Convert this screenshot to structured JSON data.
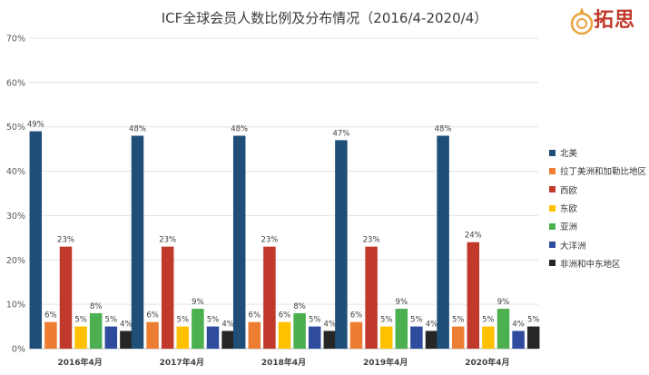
{
  "title": "ICF全球会员人数比例及分布情况（2016/4-2020/4）",
  "logo": {
    "text": "拓思"
  },
  "chart_data": {
    "type": "bar",
    "categories": [
      "2016年4月",
      "2017年4月",
      "2018年4月",
      "2019年4月",
      "2020年4月"
    ],
    "series": [
      {
        "name": "北美",
        "color": "#1F4E79",
        "values": [
          49,
          48,
          48,
          47,
          48
        ]
      },
      {
        "name": "拉丁美洲和加勒比地区",
        "color": "#ED7D31",
        "values": [
          6,
          6,
          6,
          6,
          5
        ]
      },
      {
        "name": "西欧",
        "color": "#C0392B",
        "values": [
          23,
          23,
          23,
          23,
          24
        ]
      },
      {
        "name": "东欧",
        "color": "#FFC000",
        "values": [
          5,
          5,
          6,
          5,
          5
        ]
      },
      {
        "name": "亚洲",
        "color": "#4CAF50",
        "values": [
          8,
          9,
          8,
          9,
          9
        ]
      },
      {
        "name": "大洋洲",
        "color": "#2E4B9E",
        "values": [
          5,
          5,
          5,
          5,
          4
        ]
      },
      {
        "name": "非洲和中东地区",
        "color": "#262626",
        "values": [
          4,
          4,
          4,
          4,
          5
        ]
      }
    ],
    "ylim": [
      0,
      70
    ],
    "yticks": [
      "0%",
      "10%",
      "20%",
      "30%",
      "40%",
      "50%",
      "60%",
      "70%"
    ],
    "value_suffix": "%",
    "grid": true,
    "legend_position": "right"
  }
}
